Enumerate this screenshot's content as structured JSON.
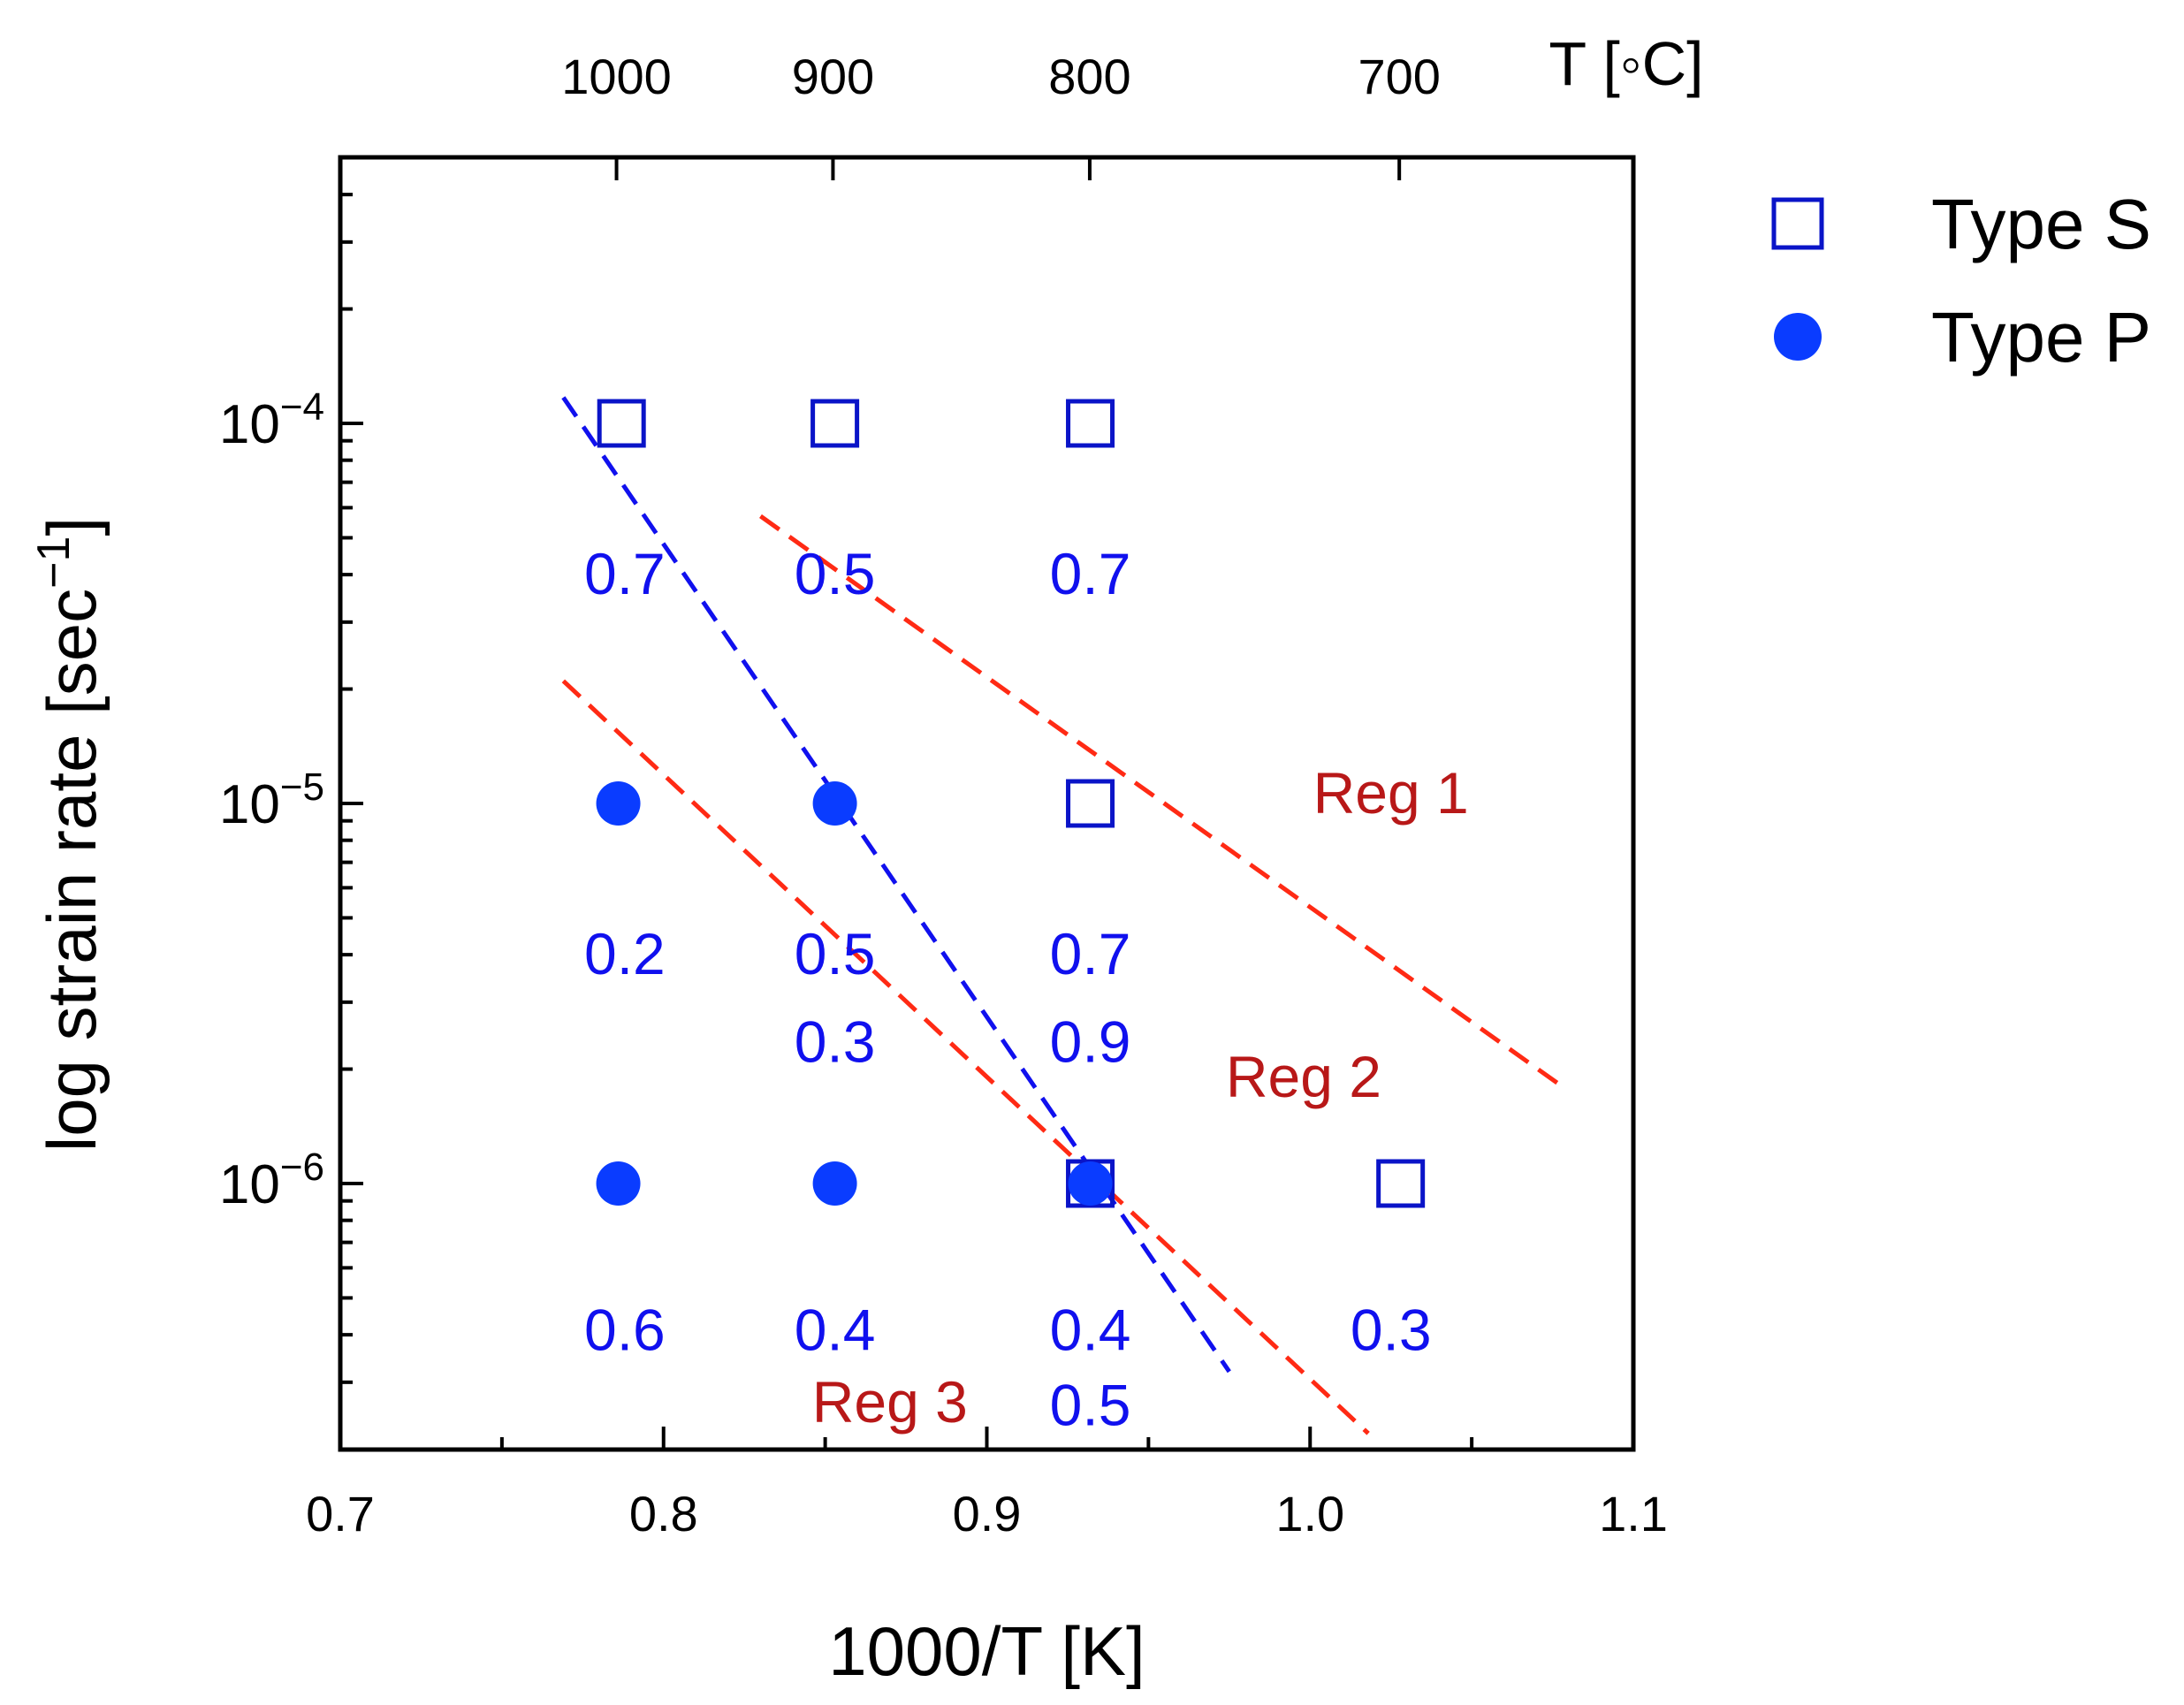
{
  "chart_data": {
    "type": "scatter",
    "title": "",
    "xlabel": "1000/T [K]",
    "ylabel_main": "log strain rate [sec",
    "ylabel_sup": "−1",
    "ylabel_close": "]",
    "xlim": [
      0.7,
      1.1
    ],
    "ylim_log10": [
      -6.7,
      -3.3
    ],
    "x_ticks": [
      {
        "value": 0.7,
        "label": "0.7"
      },
      {
        "value": 0.8,
        "label": "0.8"
      },
      {
        "value": 0.9,
        "label": "0.9"
      },
      {
        "value": 1.0,
        "label": "1.0"
      },
      {
        "value": 1.1,
        "label": "1.1"
      }
    ],
    "y_ticks": [
      {
        "exp": -4,
        "base": "10",
        "sup": "−4"
      },
      {
        "exp": -5,
        "base": "10",
        "sup": "−5"
      },
      {
        "exp": -6,
        "base": "10",
        "sup": "−6"
      }
    ],
    "top_axis": {
      "label": "T [◦C]",
      "ticks": [
        {
          "celsius": 1000,
          "label": "1000"
        },
        {
          "celsius": 900,
          "label": "900"
        },
        {
          "celsius": 800,
          "label": "800"
        },
        {
          "celsius": 700,
          "label": "700"
        }
      ]
    },
    "legend": [
      {
        "name": "Type S",
        "marker": "open-square",
        "color": "#0a14c8"
      },
      {
        "name": "Type P",
        "marker": "filled-circle",
        "color": "#0a3cff"
      }
    ],
    "series": [
      {
        "name": "Type S",
        "marker": "open-square",
        "color": "#0a14c8",
        "points": [
          {
            "x": 0.787,
            "y": 0.0001
          },
          {
            "x": 0.853,
            "y": 0.0001
          },
          {
            "x": 0.932,
            "y": 0.0001
          },
          {
            "x": 0.932,
            "y": 1e-05
          },
          {
            "x": 0.932,
            "y": 1e-06
          },
          {
            "x": 1.028,
            "y": 1e-06
          }
        ]
      },
      {
        "name": "Type P",
        "marker": "filled-circle",
        "color": "#0a3cff",
        "points": [
          {
            "x": 0.786,
            "y": 1e-05
          },
          {
            "x": 0.853,
            "y": 1e-05
          },
          {
            "x": 0.786,
            "y": 1e-06
          },
          {
            "x": 0.853,
            "y": 1e-06
          },
          {
            "x": 0.932,
            "y": 1e-06
          }
        ]
      }
    ],
    "value_labels": {
      "color": "#1010ee",
      "items": [
        {
          "x": 0.788,
          "y": 4e-05,
          "text": "0.7"
        },
        {
          "x": 0.853,
          "y": 4e-05,
          "text": "0.5"
        },
        {
          "x": 0.932,
          "y": 4e-05,
          "text": "0.7"
        },
        {
          "x": 0.788,
          "y": 4e-06,
          "text": "0.2"
        },
        {
          "x": 0.853,
          "y": 4e-06,
          "text": "0.5"
        },
        {
          "x": 0.853,
          "y": 2.35e-06,
          "text": "0.3"
        },
        {
          "x": 0.932,
          "y": 4e-06,
          "text": "0.7"
        },
        {
          "x": 0.932,
          "y": 2.35e-06,
          "text": "0.9"
        },
        {
          "x": 0.788,
          "y": 4.1e-07,
          "text": "0.6"
        },
        {
          "x": 0.853,
          "y": 4.1e-07,
          "text": "0.4"
        },
        {
          "x": 0.932,
          "y": 4.1e-07,
          "text": "0.4"
        },
        {
          "x": 0.932,
          "y": 2.6e-07,
          "text": "0.5"
        },
        {
          "x": 1.025,
          "y": 4.1e-07,
          "text": "0.3"
        }
      ]
    },
    "regions": {
      "color": "#b81818",
      "items": [
        {
          "x": 1.025,
          "y": 1.06e-05,
          "text": "Reg 1"
        },
        {
          "x": 0.998,
          "y": 1.9e-06,
          "text": "Reg 2"
        },
        {
          "x": 0.87,
          "y": 2.65e-07,
          "text": "Reg 3"
        }
      ]
    },
    "boundary_lines": [
      {
        "name": "blue-boundary",
        "color": "#1010ee",
        "points": [
          {
            "x": 0.769,
            "y": 0.000117
          },
          {
            "x": 0.975,
            "y": 3.2e-07
          }
        ]
      },
      {
        "name": "red-boundary-upper",
        "color": "#ff2a14",
        "points": [
          {
            "x": 0.83,
            "y": 5.7e-05
          },
          {
            "x": 1.078,
            "y": 1.8e-06
          }
        ]
      },
      {
        "name": "red-boundary-lower",
        "color": "#ff2a14",
        "points": [
          {
            "x": 0.769,
            "y": 2.1e-05
          },
          {
            "x": 1.018,
            "y": 2.2e-07
          }
        ]
      }
    ]
  }
}
